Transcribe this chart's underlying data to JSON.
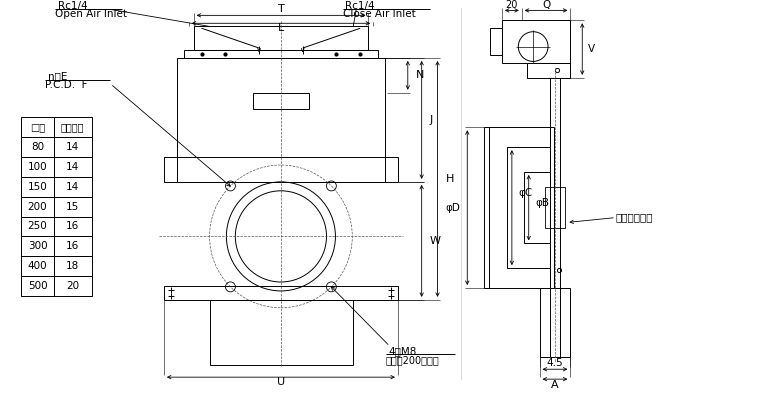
{
  "bg_color": "#ffffff",
  "line_color": "#000000",
  "table_data": {
    "header": [
      "□径",
      "ネジ深さ"
    ],
    "rows": [
      [
        "80",
        "14"
      ],
      [
        "100",
        "14"
      ],
      [
        "150",
        "14"
      ],
      [
        "200",
        "15"
      ],
      [
        "250",
        "16"
      ],
      [
        "300",
        "16"
      ],
      [
        "400",
        "18"
      ],
      [
        "500",
        "20"
      ]
    ]
  }
}
